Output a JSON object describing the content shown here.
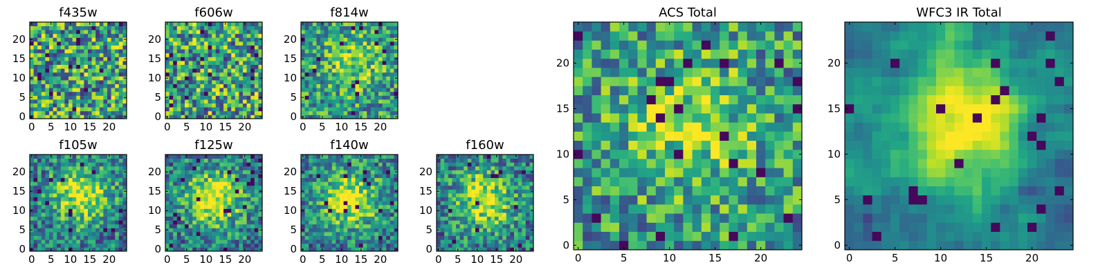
{
  "chart_data": [
    {
      "type": "heatmap",
      "title": "f435w",
      "grid_size": 25,
      "xlim": [
        0,
        24
      ],
      "ylim": [
        0,
        24
      ],
      "xticks": [
        "0",
        "5",
        "10",
        "15",
        "20"
      ],
      "yticks": [
        "0",
        "5",
        "10",
        "15",
        "20"
      ],
      "pattern": "noise",
      "seed": 11,
      "colormap": "viridis"
    },
    {
      "type": "heatmap",
      "title": "f606w",
      "grid_size": 25,
      "xlim": [
        0,
        24
      ],
      "ylim": [
        0,
        24
      ],
      "xticks": [
        "0",
        "5",
        "10",
        "15",
        "20"
      ],
      "yticks": [
        "0",
        "5",
        "10",
        "15",
        "20"
      ],
      "pattern": "noise",
      "seed": 23,
      "colormap": "viridis"
    },
    {
      "type": "heatmap",
      "title": "f814w",
      "grid_size": 25,
      "xlim": [
        0,
        24
      ],
      "ylim": [
        0,
        24
      ],
      "xticks": [
        "0",
        "5",
        "10",
        "15",
        "20"
      ],
      "yticks": [
        "0",
        "5",
        "10",
        "15",
        "20"
      ],
      "pattern": "noise_weak_peak",
      "seed": 37,
      "peak": [
        13,
        14
      ],
      "colormap": "viridis"
    },
    {
      "type": "heatmap",
      "title": "f105w",
      "grid_size": 25,
      "xlim": [
        0,
        24
      ],
      "ylim": [
        0,
        24
      ],
      "xticks": [
        "0",
        "5",
        "10",
        "15",
        "20"
      ],
      "yticks": [
        "0",
        "5",
        "10",
        "15",
        "20"
      ],
      "pattern": "peak",
      "seed": 41,
      "peak": [
        13,
        14
      ],
      "colormap": "viridis"
    },
    {
      "type": "heatmap",
      "title": "f125w",
      "grid_size": 25,
      "xlim": [
        0,
        24
      ],
      "ylim": [
        0,
        24
      ],
      "xticks": [
        "0",
        "5",
        "10",
        "15",
        "20"
      ],
      "yticks": [
        "0",
        "5",
        "10",
        "15",
        "20"
      ],
      "pattern": "peak",
      "seed": 53,
      "peak": [
        12,
        13
      ],
      "colormap": "viridis"
    },
    {
      "type": "heatmap",
      "title": "f140w",
      "grid_size": 25,
      "xlim": [
        0,
        24
      ],
      "ylim": [
        0,
        24
      ],
      "xticks": [
        "0",
        "5",
        "10",
        "15",
        "20"
      ],
      "yticks": [
        "0",
        "5",
        "10",
        "15",
        "20"
      ],
      "pattern": "peak",
      "seed": 67,
      "peak": [
        12,
        13
      ],
      "colormap": "viridis"
    },
    {
      "type": "heatmap",
      "title": "f160w",
      "grid_size": 25,
      "xlim": [
        0,
        24
      ],
      "ylim": [
        0,
        24
      ],
      "xticks": [
        "0",
        "5",
        "10",
        "15",
        "20"
      ],
      "yticks": [
        "0",
        "5",
        "10",
        "15",
        "20"
      ],
      "pattern": "peak",
      "seed": 79,
      "peak": [
        12,
        13
      ],
      "colormap": "viridis"
    },
    {
      "type": "heatmap",
      "title": "ACS Total",
      "grid_size": 25,
      "xlim": [
        0,
        24
      ],
      "ylim": [
        0,
        24
      ],
      "xticks": [
        "0",
        "5",
        "10",
        "15",
        "20"
      ],
      "yticks": [
        "0",
        "5",
        "10",
        "15",
        "20"
      ],
      "pattern": "noise_weak_peak",
      "seed": 97,
      "peak": [
        12,
        13
      ],
      "colormap": "viridis"
    },
    {
      "type": "heatmap",
      "title": "WFC3 IR Total",
      "grid_size": 25,
      "xlim": [
        0,
        24
      ],
      "ylim": [
        0,
        24
      ],
      "xticks": [
        "0",
        "5",
        "10",
        "15",
        "20"
      ],
      "yticks": [
        "0",
        "5",
        "10",
        "15",
        "20"
      ],
      "pattern": "smooth_peak",
      "seed": 101,
      "peak": [
        12,
        14
      ],
      "colormap": "viridis"
    }
  ]
}
